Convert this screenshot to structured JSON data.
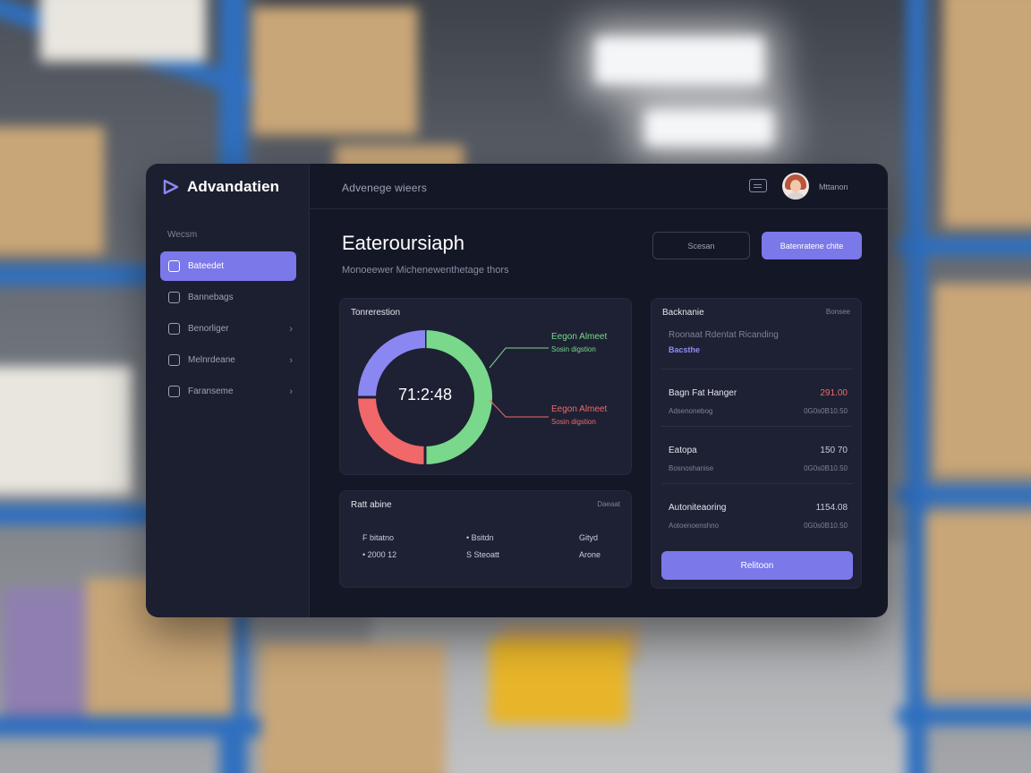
{
  "app": {
    "brand": "Advandatien",
    "breadcrumb": "Advenege  wieers",
    "username": "Mttanon",
    "page_title": "Eateroursiaph",
    "page_subtitle": "Monoeewer Michenewenthetage thors",
    "buttons": {
      "secondary": "Scesan",
      "primary": "Batenratene chite"
    }
  },
  "sidebar": {
    "section_label": "Wecsm",
    "items": [
      {
        "label": "Bateedet",
        "icon": "dashboard-icon",
        "active": true,
        "chevron": false
      },
      {
        "label": "Bannebags",
        "icon": "folder-icon",
        "active": false,
        "chevron": false
      },
      {
        "label": "Benorliger",
        "icon": "grid-icon",
        "active": false,
        "chevron": true
      },
      {
        "label": "Melnrdeane",
        "icon": "chart-icon",
        "active": false,
        "chevron": true
      },
      {
        "label": "Faranseme",
        "icon": "settings-icon",
        "active": false,
        "chevron": true
      }
    ]
  },
  "donut_card": {
    "title": "Tonrerestion",
    "center_value": "71:2:48",
    "legend": [
      {
        "title": "Eegon Almeet",
        "sub": "Sosin digstion"
      },
      {
        "title": "Eegon Almeet",
        "sub": "Sosin digstion"
      }
    ]
  },
  "chart_data": {
    "type": "pie",
    "categories": [
      "green",
      "red",
      "purple"
    ],
    "values": [
      50,
      25,
      25
    ],
    "colors": [
      "#79d88b",
      "#f0686a",
      "#8b87f2"
    ],
    "donut": true
  },
  "bottom_card": {
    "title": "Ratt abine",
    "link": "Daeaat",
    "rows": [
      [
        "F bitatno",
        "• Bsitdn",
        "Gityd"
      ],
      [
        "• 2000 12",
        "S Steoatt",
        "Arone"
      ]
    ]
  },
  "right_card": {
    "title": "Backnanie",
    "link": "Bonsee",
    "note": "Roonaat  Rdentat Ricanding",
    "note_link": "Bacsthe",
    "rows": [
      {
        "name": "Bagn Fat Hanger",
        "value": "291.00",
        "negative": true,
        "meta": "Adsenonebog",
        "meta2": "0G0s0B10.50"
      },
      {
        "name": "Eatopa",
        "value": "150 70",
        "negative": false,
        "meta": "Bosnoshanise",
        "meta2": "0G0s0B10.50"
      },
      {
        "name": "Autoniteaoring",
        "value": "1154.08",
        "negative": false,
        "meta": "Aotoenoenshno",
        "meta2": "0G0s0B10.50"
      }
    ],
    "button": "Relitoon"
  },
  "colors": {
    "accent": "#7b78ea",
    "positive": "#79d88b",
    "negative": "#f0686a"
  }
}
